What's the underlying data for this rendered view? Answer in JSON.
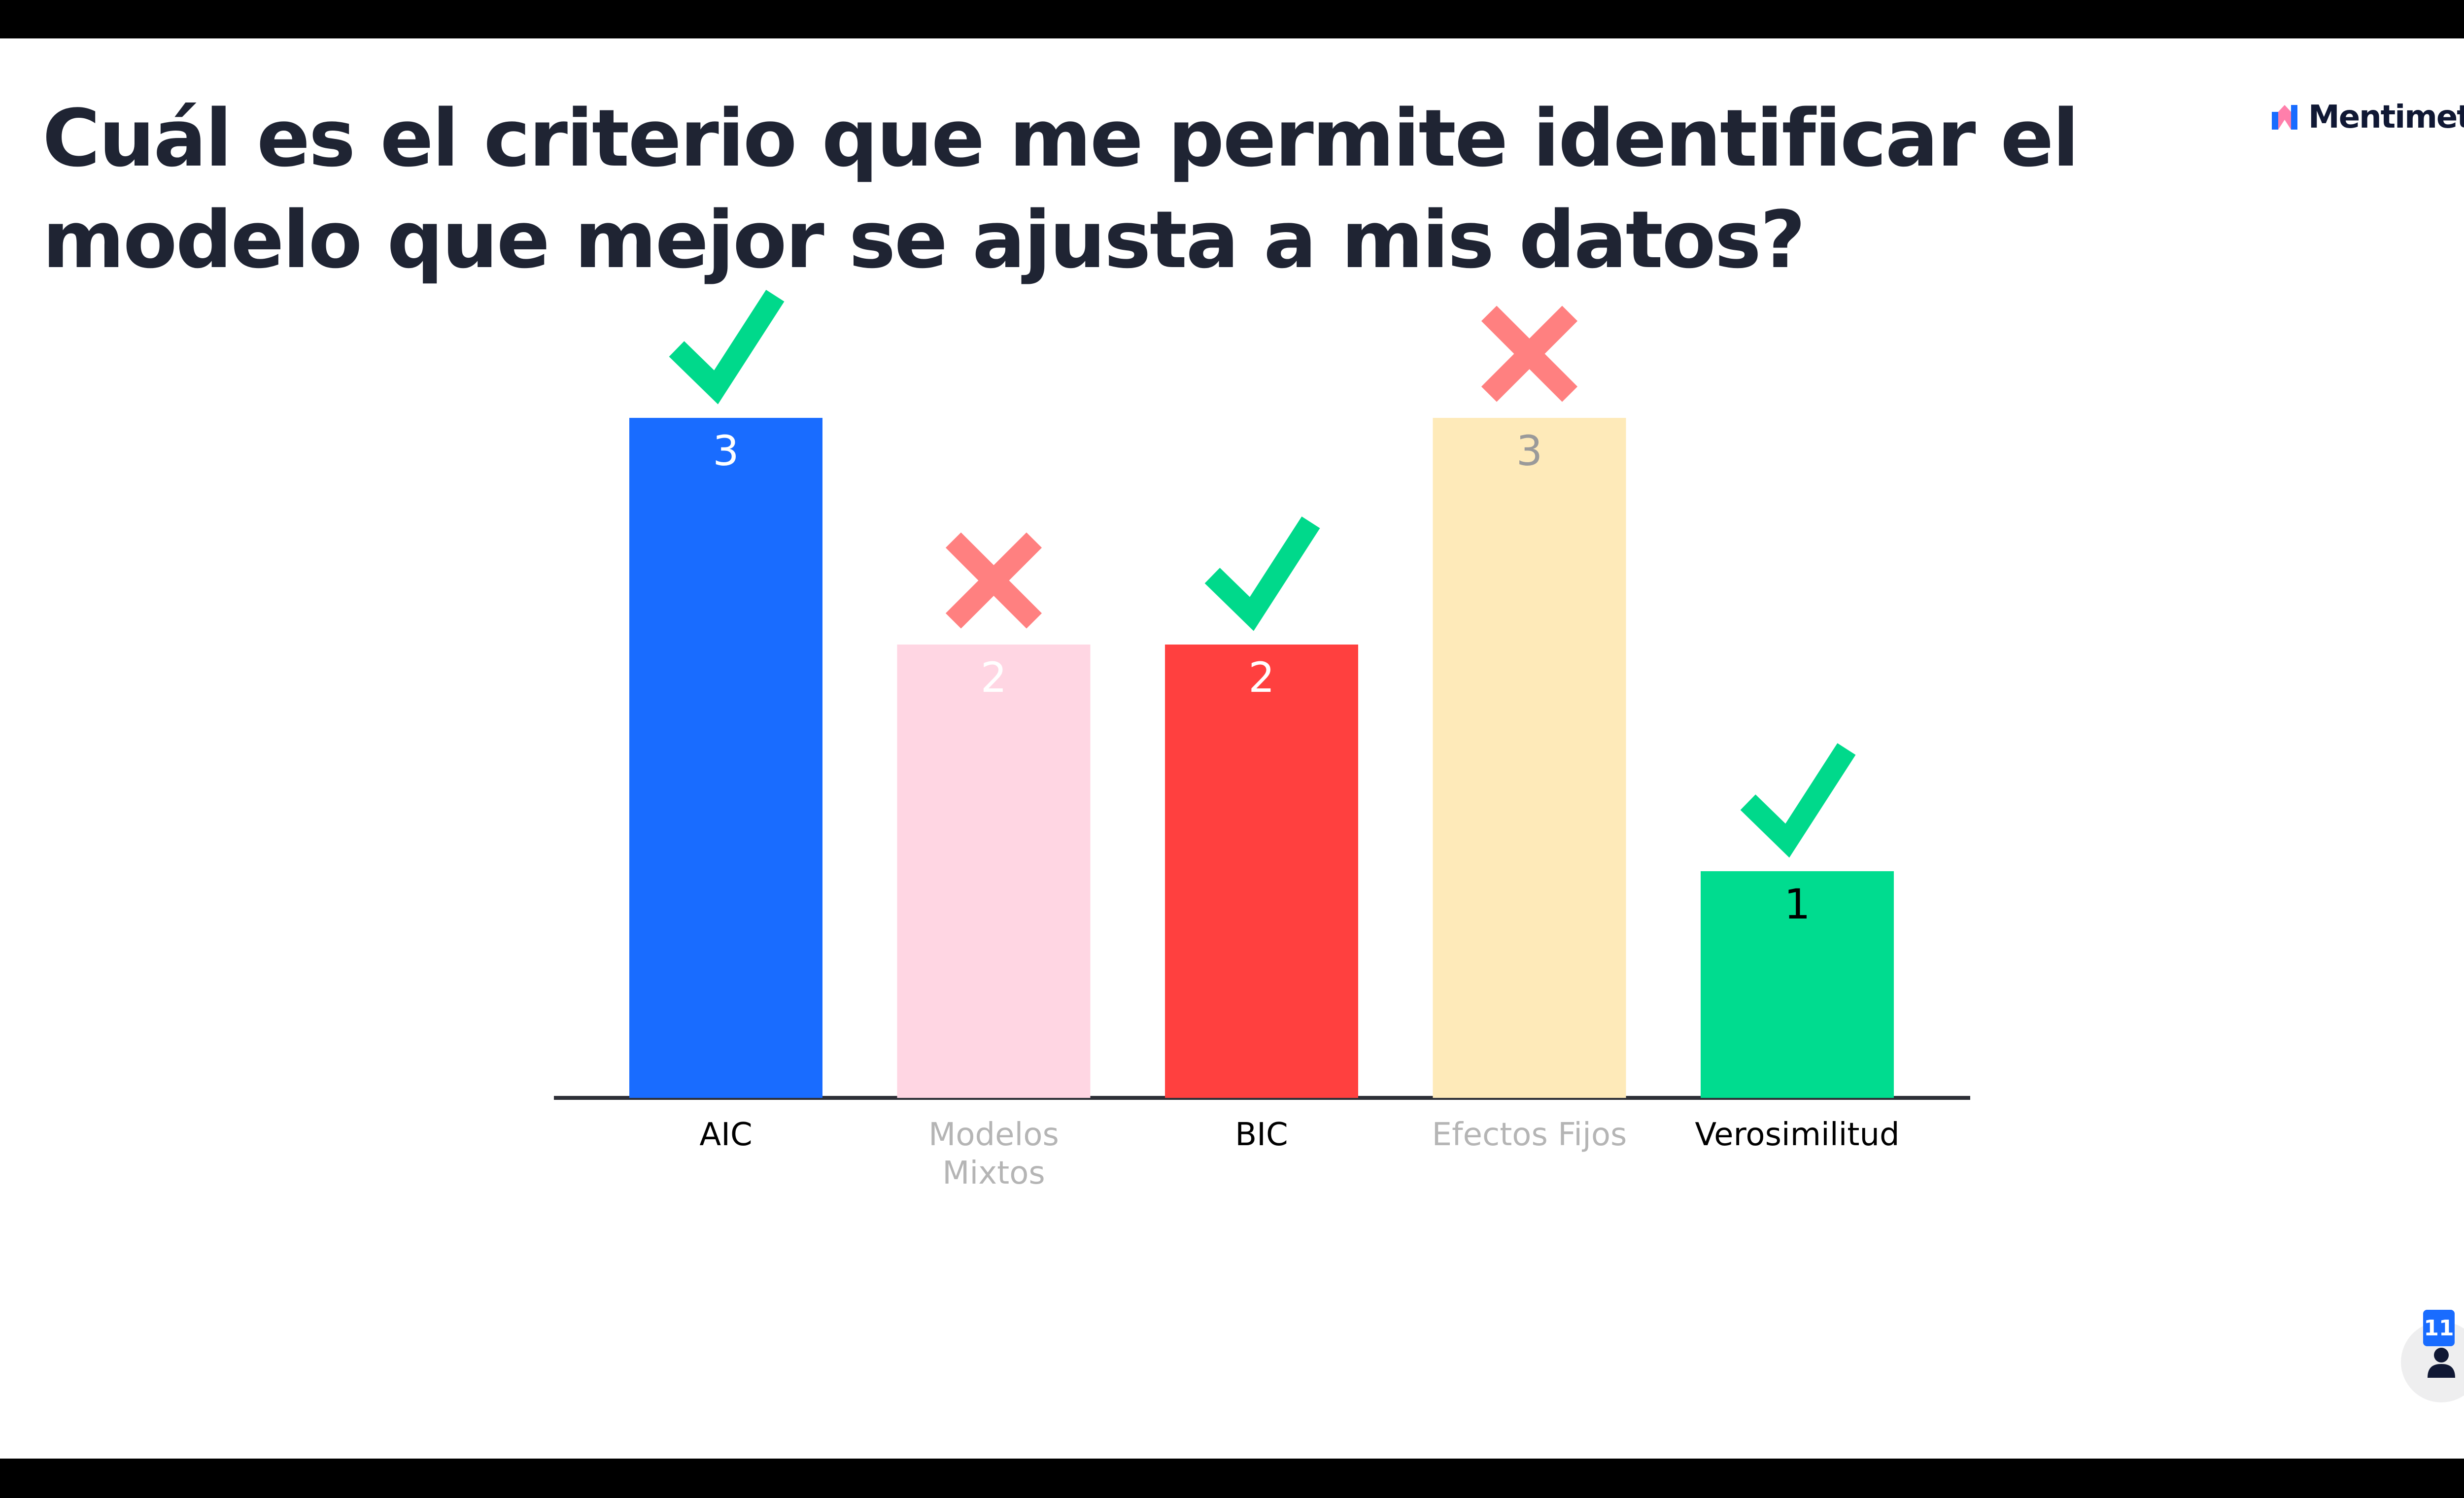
{
  "question": "Cuál es el criterio que me permite identificar el modelo que mejor se ajusta a mis datos?",
  "brand": {
    "name": "Mentimeter",
    "icon": "mentimeter-logo"
  },
  "participants": {
    "count": "11",
    "icon": "person-icon"
  },
  "chart_data": {
    "type": "bar",
    "categories": [
      "AIC",
      "Modelos Mixtos",
      "BIC",
      "Efectos Fijos",
      "Verosimilitud"
    ],
    "values": [
      3,
      2,
      2,
      3,
      1
    ],
    "ylim": [
      0,
      3
    ],
    "grid": false,
    "colors": [
      "#196cff",
      "#ffd6e3",
      "#ff403f",
      "#feeab9",
      "#00dc8f"
    ],
    "value_label_colors": [
      "#ffffff",
      "#ffffff",
      "#ffffff",
      "#9a9a9a",
      "#000000"
    ],
    "category_label_colors": [
      "#000000",
      "#b5b5b5",
      "#000000",
      "#b5b5b5",
      "#000000"
    ],
    "marks": [
      "check",
      "cross",
      "check",
      "cross",
      "check"
    ],
    "mark_colors": {
      "check": "#00d98b",
      "cross": "#ff8080"
    },
    "axis_color": "#2d2f36"
  }
}
